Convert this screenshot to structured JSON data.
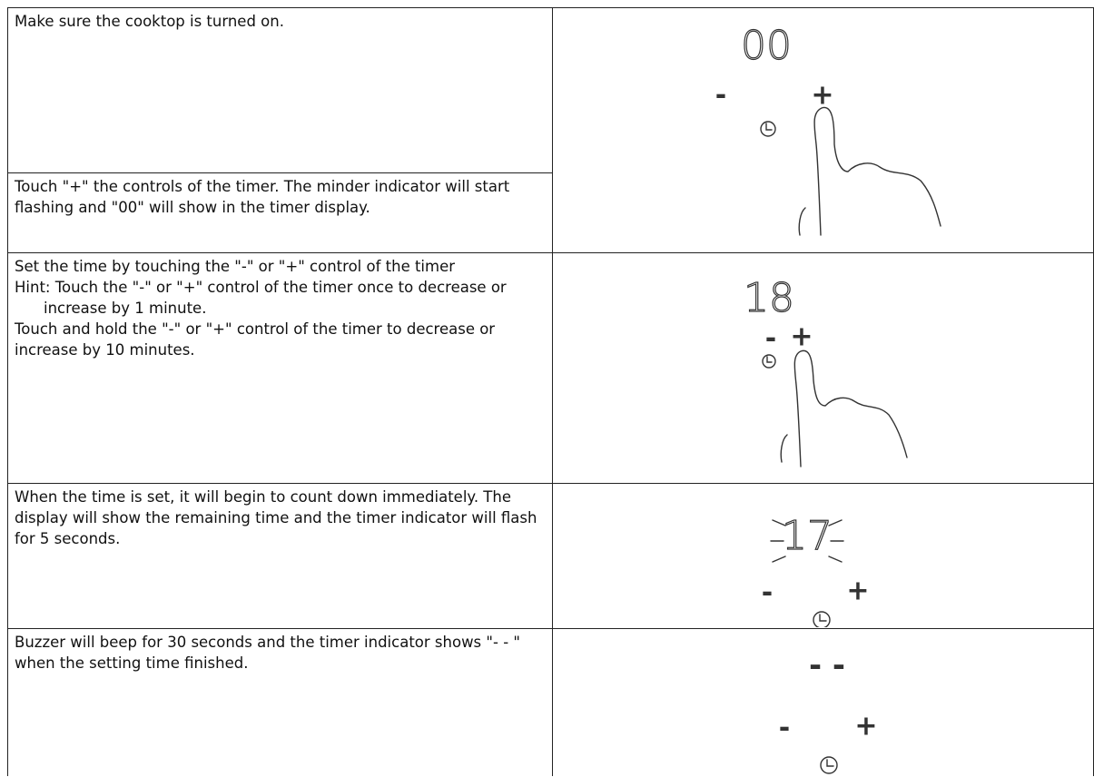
{
  "steps": [
    {
      "instructions": [
        "Make sure the cooktop is turned on.",
        "Touch \"+\" the controls of the timer. The minder indicator will start flashing and \"00\" will show in the timer display."
      ],
      "display": "00",
      "minus": "-",
      "plus": "+"
    },
    {
      "instructions": [
        "Set the time by touching the \"-\" or \"+\" control of the timer",
        "Hint: Touch the \"-\" or \"+\" control of the timer once to decrease or increase by 1 minute.",
        "Touch and hold the \"-\" or \"+\" control of the timer to decrease or increase by 10 minutes."
      ],
      "display": "18",
      "minus": "-",
      "plus": "+"
    },
    {
      "instructions": [
        "When the time is set, it will begin to count down immediately. The display will show the remaining time and the timer indicator will flash for 5 seconds."
      ],
      "display": "17",
      "minus": "-",
      "plus": "+"
    },
    {
      "instructions": [
        "Buzzer will beep for 30 seconds and the timer indicator shows \"- - \" when the setting time finished."
      ],
      "display": "- -",
      "minus": "-",
      "plus": "+"
    }
  ]
}
